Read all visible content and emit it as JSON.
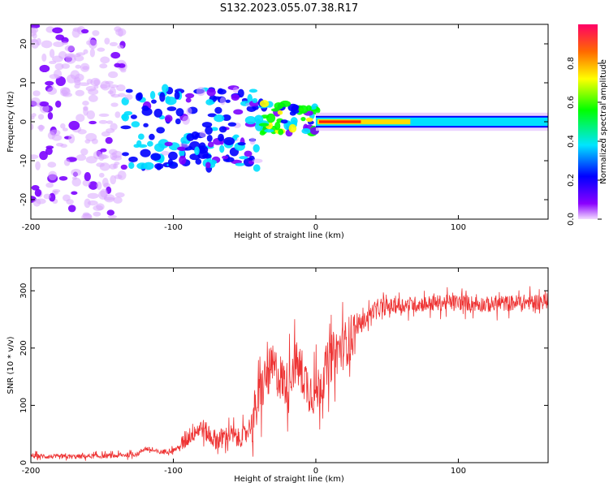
{
  "title": "S132.2023.055.07.38.R17",
  "chart_data": [
    {
      "type": "heatmap",
      "xlabel": "Height of straight line (km)",
      "ylabel": "Frequency (Hz)",
      "xlim": [
        -200,
        163
      ],
      "ylim": [
        -25,
        25
      ],
      "xticks": [
        -200,
        -100,
        0,
        100
      ],
      "yticks": [
        -20,
        -10,
        0,
        10,
        20
      ],
      "colorbar": {
        "label": "Normalized spectral amplitude",
        "range": [
          0,
          1
        ],
        "ticks": [
          0.0,
          0.2,
          0.4,
          0.6,
          0.8
        ],
        "colors": [
          "#f2d9ff",
          "#7b00ff",
          "#0000ff",
          "#00dfff",
          "#00ff00",
          "#ffff00",
          "#ff6600",
          "#ff0066"
        ]
      },
      "features": [
        {
          "name": "diffuse noise",
          "x_range": [
            -200,
            -135
          ],
          "freq_range": [
            -25,
            25
          ],
          "amplitude": 0.12
        },
        {
          "name": "broadband scatter",
          "x_range": [
            -135,
            -40
          ],
          "freq_range": [
            -12,
            9
          ],
          "amplitude": 0.3
        },
        {
          "name": "narrowing band",
          "x_range": [
            -40,
            0
          ],
          "freq_range": [
            -3,
            5
          ],
          "amplitude": 0.45
        },
        {
          "name": "narrow carrier line",
          "x_range": [
            0,
            163
          ],
          "freq_range": [
            -1.5,
            1.5
          ],
          "amplitude": 0.95
        }
      ],
      "grid": false
    },
    {
      "type": "line",
      "xlabel": "Height of straight line (km)",
      "ylabel": "SNR (10 * v/v)",
      "xlim": [
        -200,
        163
      ],
      "ylim": [
        0,
        340
      ],
      "xticks": [
        -200,
        -100,
        0,
        100
      ],
      "yticks": [
        0,
        100,
        200,
        300
      ],
      "color": "#ee3333",
      "grid": false,
      "series": [
        {
          "x": [
            -200,
            -180,
            -160,
            -140,
            -125,
            -120,
            -110,
            -100,
            -95,
            -90,
            -85,
            -80,
            -75,
            -70,
            -65,
            -60,
            -55,
            -50,
            -45,
            -40,
            -35,
            -30,
            -25,
            -20,
            -15,
            -10,
            -5,
            0,
            5,
            10,
            15,
            20,
            25,
            30,
            35,
            40,
            50,
            60,
            80,
            100,
            120,
            140,
            163
          ],
          "y": [
            12,
            10,
            11,
            12,
            15,
            25,
            18,
            22,
            28,
            45,
            55,
            62,
            48,
            40,
            44,
            50,
            42,
            48,
            70,
            110,
            150,
            165,
            150,
            135,
            175,
            160,
            130,
            120,
            150,
            180,
            195,
            205,
            220,
            240,
            250,
            265,
            272,
            275,
            278,
            280,
            276,
            279,
            282
          ]
        }
      ]
    }
  ]
}
